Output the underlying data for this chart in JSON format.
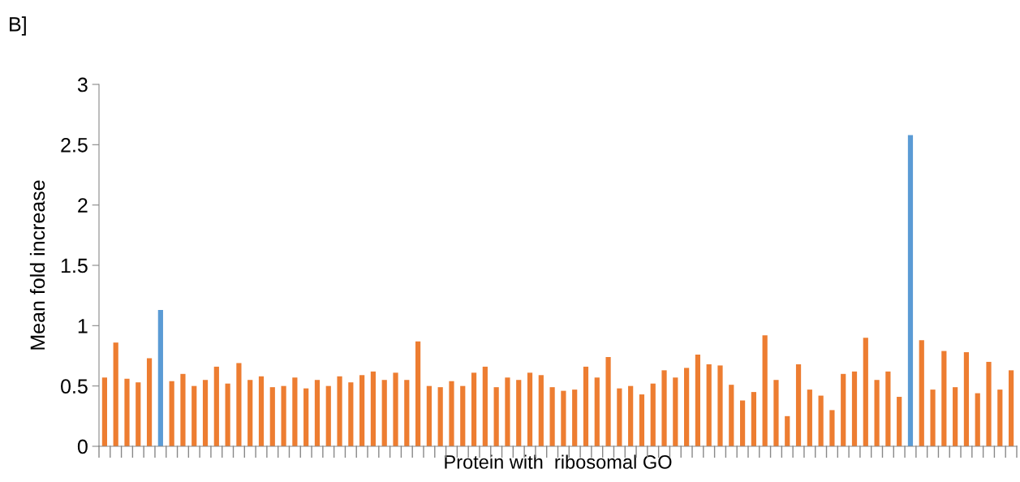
{
  "chart_data": {
    "type": "bar",
    "title": "B]",
    "xlabel": "Protein with  ribosomal GO",
    "ylabel": "Mean fold increase",
    "categories": [
      null,
      null,
      null,
      null,
      null,
      null,
      null,
      null,
      null,
      null,
      null,
      null,
      null,
      null,
      null,
      null,
      null,
      null,
      null,
      null,
      null,
      null,
      null,
      null,
      null,
      null,
      null,
      null,
      null,
      null,
      null,
      null,
      null,
      null,
      null,
      null,
      null,
      null,
      null,
      null,
      null,
      null,
      null,
      null,
      null,
      null,
      null,
      null,
      null,
      null,
      null,
      null,
      null,
      null,
      null,
      null,
      null,
      null,
      null,
      null,
      null,
      null,
      null,
      null,
      null,
      null,
      null,
      null,
      null,
      null,
      null,
      null,
      null,
      null,
      null,
      null,
      null,
      null,
      null,
      null,
      null,
      null
    ],
    "values": [
      0.57,
      0.86,
      0.56,
      0.53,
      0.73,
      1.13,
      0.54,
      0.6,
      0.5,
      0.55,
      0.66,
      0.52,
      0.69,
      0.55,
      0.58,
      0.49,
      0.5,
      0.57,
      0.48,
      0.55,
      0.5,
      0.58,
      0.53,
      0.59,
      0.62,
      0.55,
      0.61,
      0.55,
      0.87,
      0.5,
      0.49,
      0.54,
      0.5,
      0.61,
      0.66,
      0.49,
      0.57,
      0.55,
      0.61,
      0.59,
      0.49,
      0.46,
      0.47,
      0.66,
      0.57,
      0.74,
      0.48,
      0.5,
      0.43,
      0.52,
      0.63,
      0.57,
      0.65,
      0.76,
      0.68,
      0.67,
      0.51,
      0.38,
      0.45,
      0.92,
      0.55,
      0.25,
      0.68,
      0.47,
      0.42,
      0.3,
      0.6,
      0.62,
      0.9,
      0.55,
      0.62,
      0.41,
      2.58,
      0.88,
      0.47,
      0.79,
      0.49,
      0.78,
      0.44,
      0.7,
      0.47,
      0.63
    ],
    "colors": [
      "#ed7d31",
      "#ed7d31",
      "#ed7d31",
      "#ed7d31",
      "#ed7d31",
      "#5b9bd5",
      "#ed7d31",
      "#ed7d31",
      "#ed7d31",
      "#ed7d31",
      "#ed7d31",
      "#ed7d31",
      "#ed7d31",
      "#ed7d31",
      "#ed7d31",
      "#ed7d31",
      "#ed7d31",
      "#ed7d31",
      "#ed7d31",
      "#ed7d31",
      "#ed7d31",
      "#ed7d31",
      "#ed7d31",
      "#ed7d31",
      "#ed7d31",
      "#ed7d31",
      "#ed7d31",
      "#ed7d31",
      "#ed7d31",
      "#ed7d31",
      "#ed7d31",
      "#ed7d31",
      "#ed7d31",
      "#ed7d31",
      "#ed7d31",
      "#ed7d31",
      "#ed7d31",
      "#ed7d31",
      "#ed7d31",
      "#ed7d31",
      "#ed7d31",
      "#ed7d31",
      "#ed7d31",
      "#ed7d31",
      "#ed7d31",
      "#ed7d31",
      "#ed7d31",
      "#ed7d31",
      "#ed7d31",
      "#ed7d31",
      "#ed7d31",
      "#ed7d31",
      "#ed7d31",
      "#ed7d31",
      "#ed7d31",
      "#ed7d31",
      "#ed7d31",
      "#ed7d31",
      "#ed7d31",
      "#ed7d31",
      "#ed7d31",
      "#ed7d31",
      "#ed7d31",
      "#ed7d31",
      "#ed7d31",
      "#ed7d31",
      "#ed7d31",
      "#ed7d31",
      "#ed7d31",
      "#ed7d31",
      "#ed7d31",
      "#ed7d31",
      "#5b9bd5",
      "#ed7d31",
      "#ed7d31",
      "#ed7d31",
      "#ed7d31",
      "#ed7d31",
      "#ed7d31",
      "#ed7d31",
      "#ed7d31",
      "#ed7d31"
    ],
    "ylim": [
      0,
      3
    ],
    "yticks": [
      0,
      0.5,
      1,
      1.5,
      2,
      2.5,
      3
    ],
    "grid": false,
    "legend": false
  }
}
